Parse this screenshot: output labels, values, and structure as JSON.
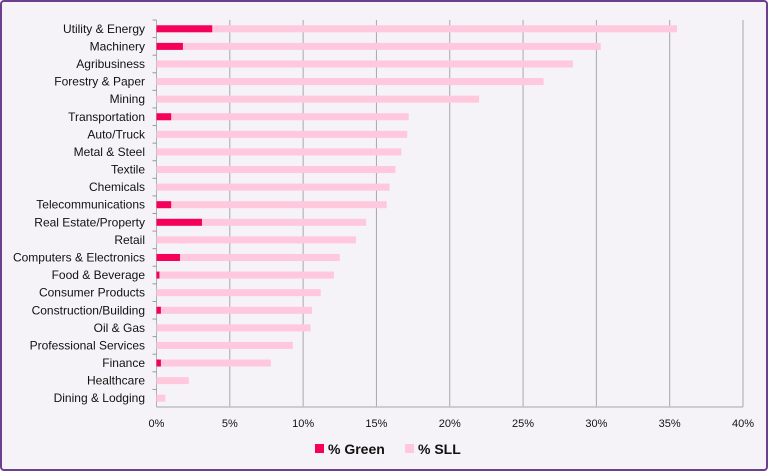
{
  "chart_data": {
    "type": "bar",
    "orientation": "horizontal",
    "stacked": false,
    "title": "",
    "xlabel": "",
    "ylabel": "",
    "xlim": [
      0,
      40
    ],
    "x_ticks": [
      "0%",
      "5%",
      "10%",
      "15%",
      "20%",
      "25%",
      "30%",
      "35%",
      "40%"
    ],
    "grid": true,
    "legend_position": "bottom",
    "categories": [
      "Utility & Energy",
      "Machinery",
      "Agribusiness",
      "Forestry & Paper",
      "Mining",
      "Transportation",
      "Auto/Truck",
      "Metal & Steel",
      "Textile",
      "Chemicals",
      "Telecommunications",
      "Real Estate/Property",
      "Retail",
      "Computers & Electronics",
      "Food & Beverage",
      "Consumer Products",
      "Construction/Building",
      "Oil & Gas",
      "Professional Services",
      "Finance",
      "Healthcare",
      "Dining & Lodging"
    ],
    "series": [
      {
        "name": "% Green",
        "color": "#f5005a",
        "values": [
          3.8,
          1.8,
          0,
          0,
          0,
          1.0,
          0,
          0,
          0,
          0,
          1.0,
          3.1,
          0,
          1.6,
          0.2,
          0,
          0.3,
          0,
          0,
          0.3,
          0,
          0
        ]
      },
      {
        "name": "% SLL",
        "color": "#ffc8dc",
        "values": [
          35.5,
          30.3,
          28.4,
          26.4,
          22.0,
          17.2,
          17.1,
          16.7,
          16.3,
          15.9,
          15.7,
          14.3,
          13.6,
          12.5,
          12.1,
          11.2,
          10.6,
          10.5,
          9.3,
          7.8,
          2.2,
          0.6
        ]
      }
    ]
  }
}
